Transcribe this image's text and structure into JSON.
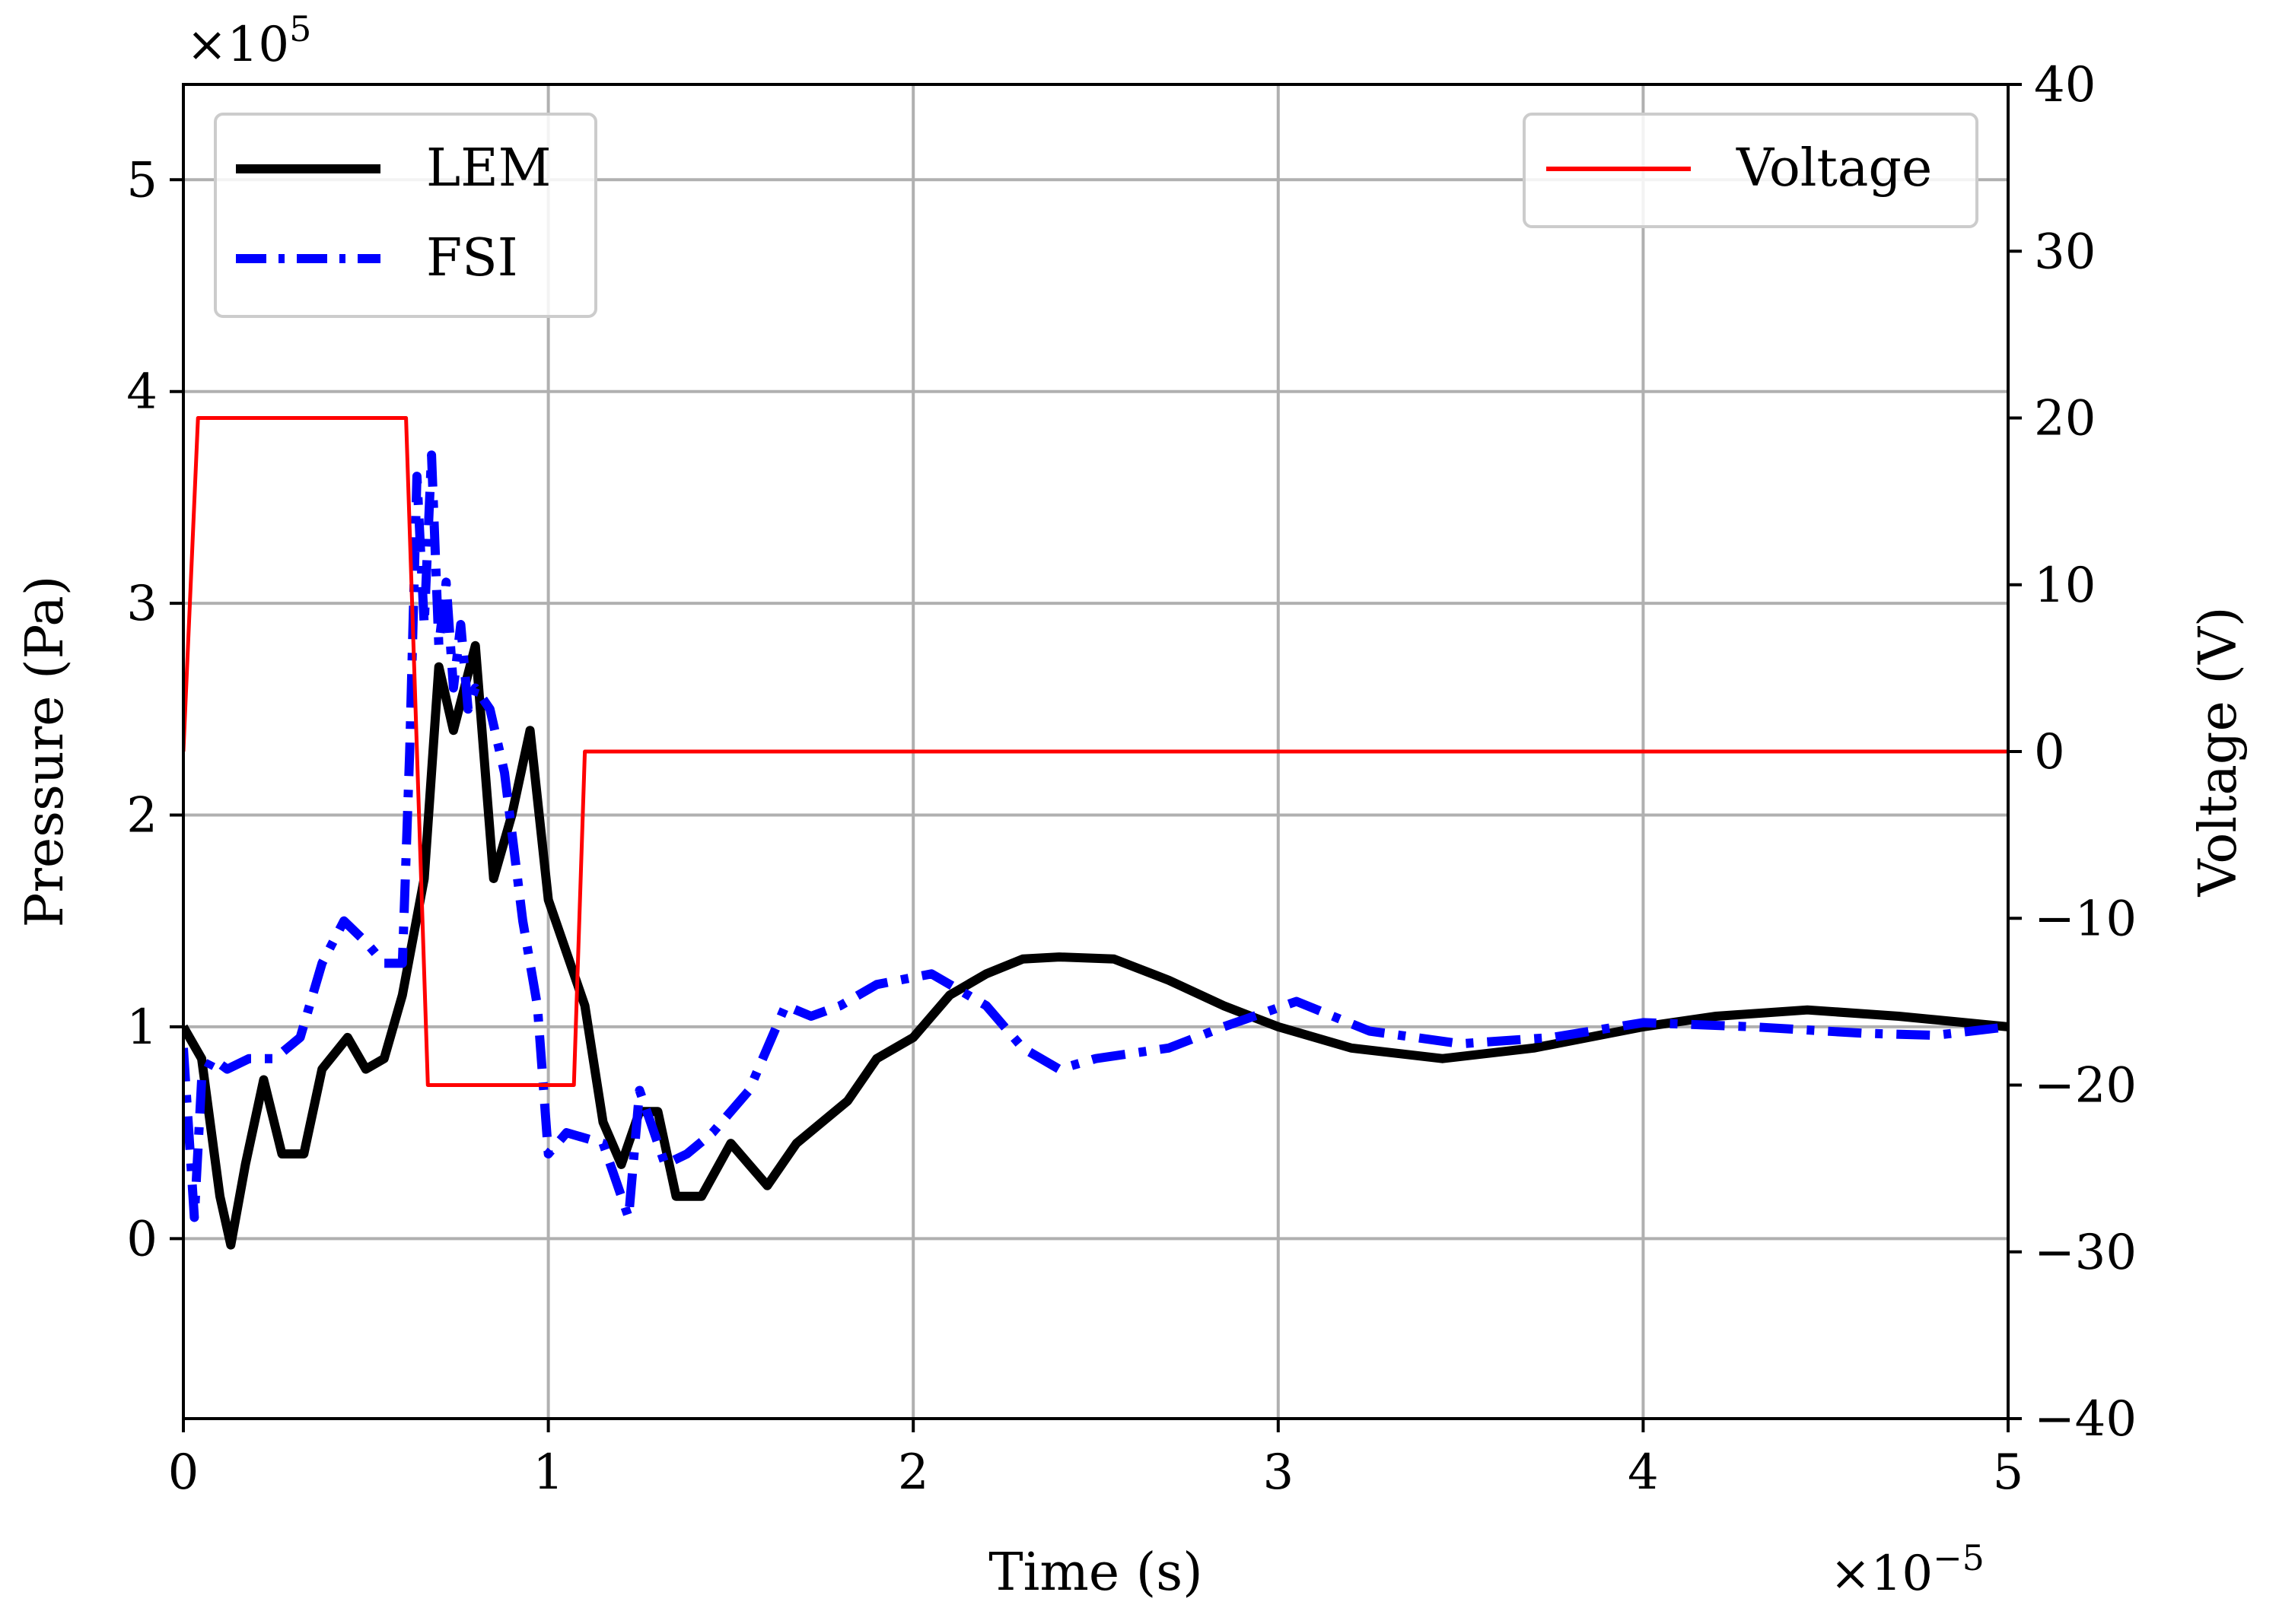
{
  "chart_data": {
    "type": "line",
    "x_axis": {
      "label": "Time (s)",
      "range": [
        0,
        5
      ],
      "ticks": [
        0,
        1,
        2,
        3,
        4,
        5
      ],
      "tick_labels": [
        "0",
        "1",
        "2",
        "3",
        "4",
        "5"
      ],
      "multiplier_label": "×10",
      "multiplier_exponent": "−5"
    },
    "y_axis_left": {
      "label": "Pressure (Pa)",
      "range": [
        -0.85,
        5.45
      ],
      "ticks": [
        0,
        1,
        2,
        3,
        4,
        5
      ],
      "tick_labels": [
        "0",
        "1",
        "2",
        "3",
        "4",
        "5"
      ],
      "multiplier_label": "×10",
      "multiplier_exponent": "5"
    },
    "y_axis_right": {
      "label": "Voltage (V)",
      "range": [
        -40,
        40
      ],
      "ticks": [
        -40,
        -30,
        -20,
        -10,
        0,
        10,
        20,
        30,
        40
      ],
      "tick_labels": [
        "−40",
        "−30",
        "−20",
        "−10",
        "0",
        "10",
        "20",
        "30",
        "40"
      ]
    },
    "grid": true,
    "legends": [
      {
        "placement": "top-left",
        "entries": [
          "LEM",
          "FSI"
        ]
      },
      {
        "placement": "top-right",
        "entries": [
          "Voltage"
        ]
      }
    ],
    "series": [
      {
        "name": "LEM",
        "axis": "left",
        "color": "#000000",
        "style": "solid",
        "x": [
          0,
          0.05,
          0.1,
          0.13,
          0.17,
          0.22,
          0.27,
          0.33,
          0.38,
          0.45,
          0.5,
          0.55,
          0.6,
          0.66,
          0.7,
          0.74,
          0.8,
          0.85,
          0.9,
          0.95,
          1.0,
          1.05,
          1.1,
          1.15,
          1.2,
          1.25,
          1.3,
          1.35,
          1.42,
          1.5,
          1.55,
          1.6,
          1.68,
          1.75,
          1.82,
          1.9,
          2.0,
          2.1,
          2.2,
          2.3,
          2.4,
          2.55,
          2.7,
          2.85,
          3.0,
          3.2,
          3.45,
          3.7,
          4.0,
          4.2,
          4.45,
          4.7,
          5.0
        ],
        "y": [
          1.0,
          0.85,
          0.2,
          -0.03,
          0.35,
          0.75,
          0.4,
          0.4,
          0.8,
          0.95,
          0.8,
          0.85,
          1.15,
          1.7,
          2.7,
          2.4,
          2.8,
          1.7,
          2.0,
          2.4,
          1.6,
          1.35,
          1.1,
          0.55,
          0.35,
          0.6,
          0.6,
          0.2,
          0.2,
          0.45,
          0.35,
          0.25,
          0.45,
          0.55,
          0.65,
          0.85,
          0.95,
          1.15,
          1.25,
          1.32,
          1.33,
          1.32,
          1.22,
          1.1,
          1.0,
          0.9,
          0.85,
          0.9,
          1.0,
          1.05,
          1.08,
          1.05,
          1.0
        ]
      },
      {
        "name": "FSI",
        "axis": "left",
        "color": "#0000ff",
        "style": "dashdot",
        "x": [
          0,
          0.03,
          0.05,
          0.08,
          0.12,
          0.18,
          0.25,
          0.32,
          0.38,
          0.44,
          0.5,
          0.55,
          0.6,
          0.62,
          0.64,
          0.66,
          0.68,
          0.7,
          0.72,
          0.74,
          0.76,
          0.78,
          0.8,
          0.84,
          0.88,
          0.93,
          0.97,
          1.0,
          1.05,
          1.15,
          1.22,
          1.25,
          1.28,
          1.32,
          1.38,
          1.45,
          1.55,
          1.65,
          1.72,
          1.8,
          1.9,
          2.05,
          2.2,
          2.3,
          2.4,
          2.5,
          2.7,
          2.85,
          3.05,
          3.25,
          3.5,
          3.75,
          4.0,
          4.3,
          4.6,
          4.8,
          5.0
        ],
        "y": [
          0.9,
          0.1,
          0.75,
          0.85,
          0.8,
          0.85,
          0.85,
          0.95,
          1.3,
          1.5,
          1.4,
          1.3,
          1.3,
          2.3,
          3.6,
          2.9,
          3.7,
          2.8,
          3.1,
          2.6,
          2.9,
          2.5,
          2.6,
          2.5,
          2.2,
          1.5,
          1.1,
          0.4,
          0.5,
          0.45,
          0.1,
          0.7,
          0.55,
          0.35,
          0.4,
          0.5,
          0.7,
          1.1,
          1.05,
          1.1,
          1.2,
          1.25,
          1.1,
          0.9,
          0.8,
          0.85,
          0.9,
          1.0,
          1.12,
          0.98,
          0.92,
          0.95,
          1.02,
          1.0,
          0.97,
          0.96,
          1.0
        ]
      },
      {
        "name": "Voltage",
        "axis": "right",
        "color": "#ff0000",
        "style": "solid",
        "x": [
          0,
          0.04,
          0.61,
          0.67,
          1.07,
          1.1,
          5.0
        ],
        "y": [
          0,
          20,
          20,
          -20,
          -20,
          0,
          0
        ]
      }
    ]
  }
}
